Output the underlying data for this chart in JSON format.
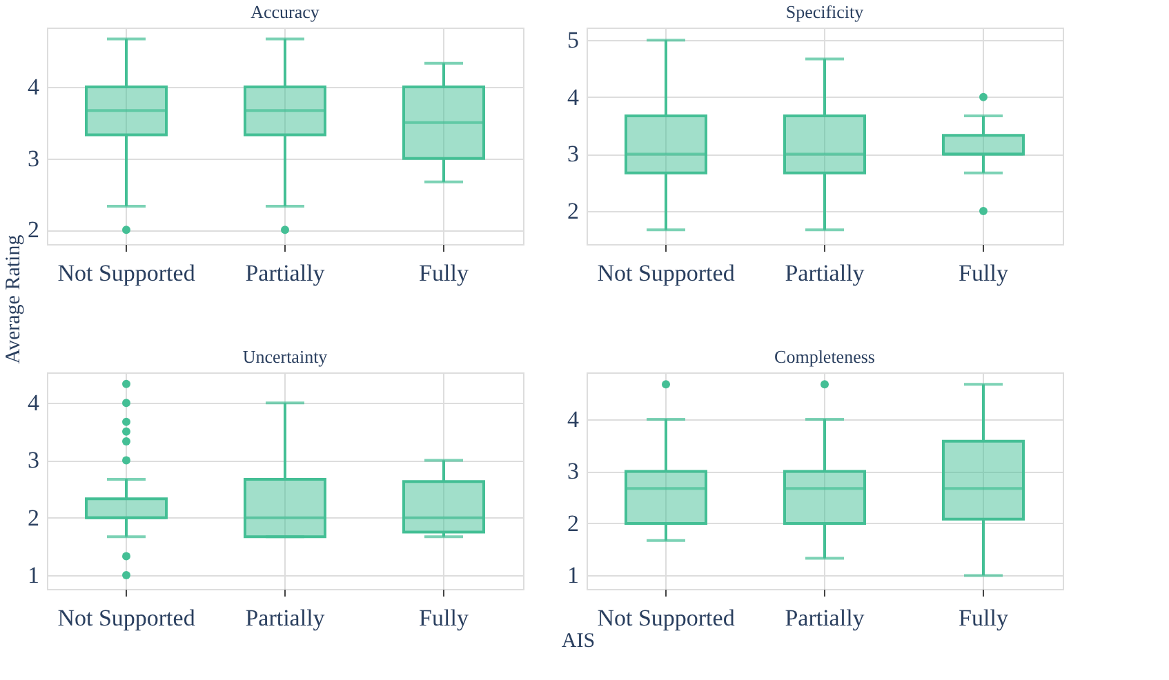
{
  "chart_data": [
    {
      "type": "box",
      "title": "Accuracy",
      "ylabel": "Average Rating",
      "categories": [
        "Not Supported",
        "Partially",
        "Fully"
      ],
      "color": "#44bf95",
      "ylim": [
        1.8,
        4.83
      ],
      "yticks": [
        2,
        3,
        4
      ],
      "grid": true,
      "boxes": [
        {
          "low": 2.33,
          "q1": 3.33,
          "median": 3.67,
          "q3": 4,
          "high": 4.67,
          "outliers": [
            2
          ]
        },
        {
          "low": 2.33,
          "q1": 3.33,
          "median": 3.67,
          "q3": 4,
          "high": 4.67,
          "outliers": [
            2
          ]
        },
        {
          "low": 2.67,
          "q1": 3,
          "median": 3.5,
          "q3": 4,
          "high": 4.33
        }
      ]
    },
    {
      "type": "box",
      "title": "Specificity",
      "categories": [
        "Not Supported",
        "Partially",
        "Fully"
      ],
      "color": "#44bf95",
      "ylim": [
        1.42,
        5.22
      ],
      "yticks": [
        2,
        3,
        4,
        5
      ],
      "grid": true,
      "boxes": [
        {
          "low": 1.67,
          "q1": 2.67,
          "median": 3,
          "q3": 3.67,
          "high": 5
        },
        {
          "low": 1.67,
          "q1": 2.67,
          "median": 3,
          "q3": 3.67,
          "high": 4.67
        },
        {
          "low": 2.67,
          "q1": 3,
          "median": 3,
          "q3": 3.33,
          "high": 3.67,
          "outliers": [
            4,
            2
          ]
        }
      ]
    },
    {
      "type": "box",
      "title": "Uncertainty",
      "xlabel": "AIS",
      "categories": [
        "Not Supported",
        "Partially",
        "Fully"
      ],
      "color": "#44bf95",
      "ylim": [
        0.76,
        4.53
      ],
      "yticks": [
        1,
        2,
        3,
        4
      ],
      "grid": true,
      "boxes": [
        {
          "low": 1.67,
          "q1": 2,
          "median": 2,
          "q3": 2.33,
          "high": 2.67,
          "outliers": [
            4.33,
            4,
            3.67,
            3.5,
            3.33,
            3,
            1.33,
            1
          ]
        },
        {
          "low": 1.67,
          "q1": 1.67,
          "median": 2,
          "q3": 2.67,
          "high": 4
        },
        {
          "low": 1.67,
          "q1": 1.75,
          "median": 2,
          "q3": 2.63,
          "high": 3
        }
      ]
    },
    {
      "type": "box",
      "title": "Completeness",
      "categories": [
        "Not Supported",
        "Partially",
        "Fully"
      ],
      "color": "#44bf95",
      "ylim": [
        0.74,
        4.9
      ],
      "yticks": [
        1,
        2,
        3,
        4
      ],
      "grid": true,
      "boxes": [
        {
          "low": 1.67,
          "q1": 2,
          "median": 2.67,
          "q3": 3,
          "high": 4,
          "outliers": [
            4.67
          ]
        },
        {
          "low": 1.33,
          "q1": 2,
          "median": 2.67,
          "q3": 3,
          "high": 4,
          "outliers": [
            4.67
          ]
        },
        {
          "low": 1,
          "q1": 2.08,
          "median": 2.67,
          "q3": 3.58,
          "high": 4.67
        }
      ]
    }
  ]
}
